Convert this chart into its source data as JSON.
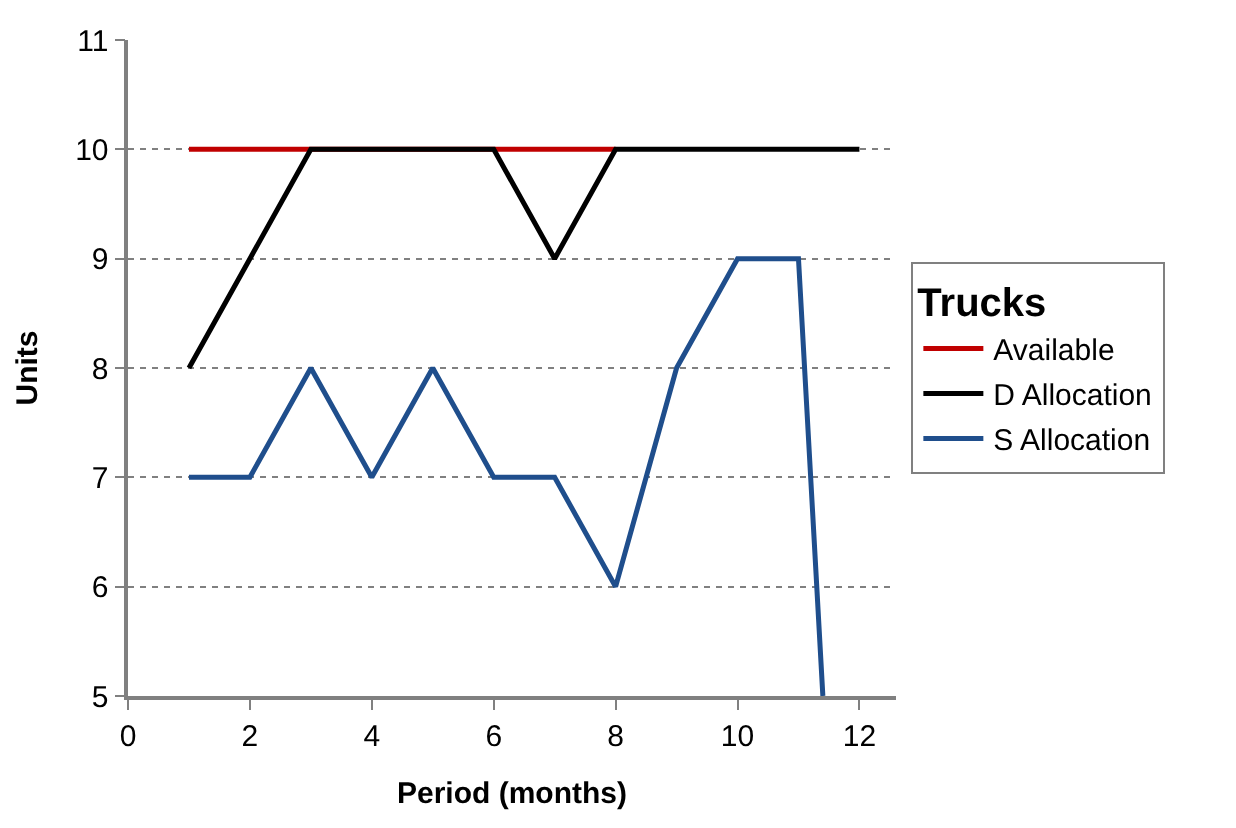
{
  "chart_data": {
    "type": "line",
    "legend_title": "Trucks",
    "xlabel": "Period (months)",
    "ylabel": "Units",
    "series": [
      {
        "name": "Available",
        "color": "#c00000",
        "x": [
          1,
          2,
          3,
          6,
          7,
          8
        ],
        "values": [
          10,
          10,
          10,
          10,
          10,
          10
        ]
      },
      {
        "name": "D Allocation",
        "color": "#000000",
        "x": [
          1,
          2,
          3,
          4,
          5,
          6,
          7,
          8,
          9,
          10,
          11,
          12
        ],
        "values": [
          8,
          9,
          10,
          10,
          10,
          10,
          9,
          10,
          10,
          10,
          10,
          10
        ]
      },
      {
        "name": "S Allocation",
        "color": "#1f4e8c",
        "x": [
          1,
          2,
          3,
          4,
          5,
          6,
          7,
          8,
          9,
          10,
          11,
          11.4
        ],
        "values": [
          7,
          7,
          8,
          7,
          8,
          7,
          7,
          6,
          8,
          9,
          9,
          5
        ]
      }
    ],
    "xlim": [
      0,
      12.6
    ],
    "xticks": [
      0,
      2,
      4,
      6,
      8,
      10,
      12
    ],
    "ylim": [
      5,
      11
    ],
    "yticks": [
      5,
      6,
      7,
      8,
      9,
      10,
      11
    ],
    "grid": "y",
    "legend": "right",
    "marker": "none",
    "line_style": "solid"
  }
}
